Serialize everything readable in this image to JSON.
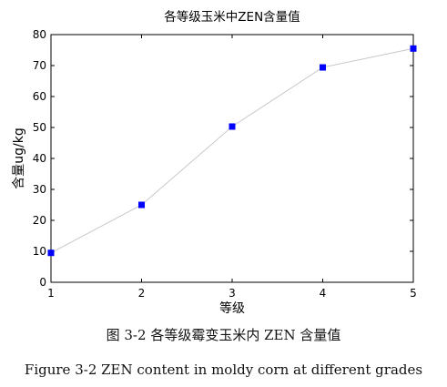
{
  "chart_data": {
    "type": "line",
    "title": "各等级玉米中ZEN含量值",
    "xlabel": "等级",
    "ylabel": "含量ug/kg",
    "x": [
      1,
      2,
      3,
      4,
      5
    ],
    "values": [
      9.5,
      25,
      50.3,
      69.4,
      75.5
    ],
    "xlim": [
      1,
      5
    ],
    "ylim": [
      0,
      80
    ],
    "xticks": [
      "1",
      "2",
      "3",
      "4",
      "5"
    ],
    "yticks": [
      "0",
      "10",
      "20",
      "30",
      "40",
      "50",
      "60",
      "70",
      "80"
    ],
    "grid": false,
    "legend": "none",
    "marker": "square",
    "marker_color": "#0000ff",
    "line_color": "#c8c8c8"
  },
  "captions": {
    "chinese": "图 3-2  各等级霉变玉米内 ZEN 含量值",
    "english": "Figure 3-2 ZEN content in moldy corn at different grades"
  }
}
